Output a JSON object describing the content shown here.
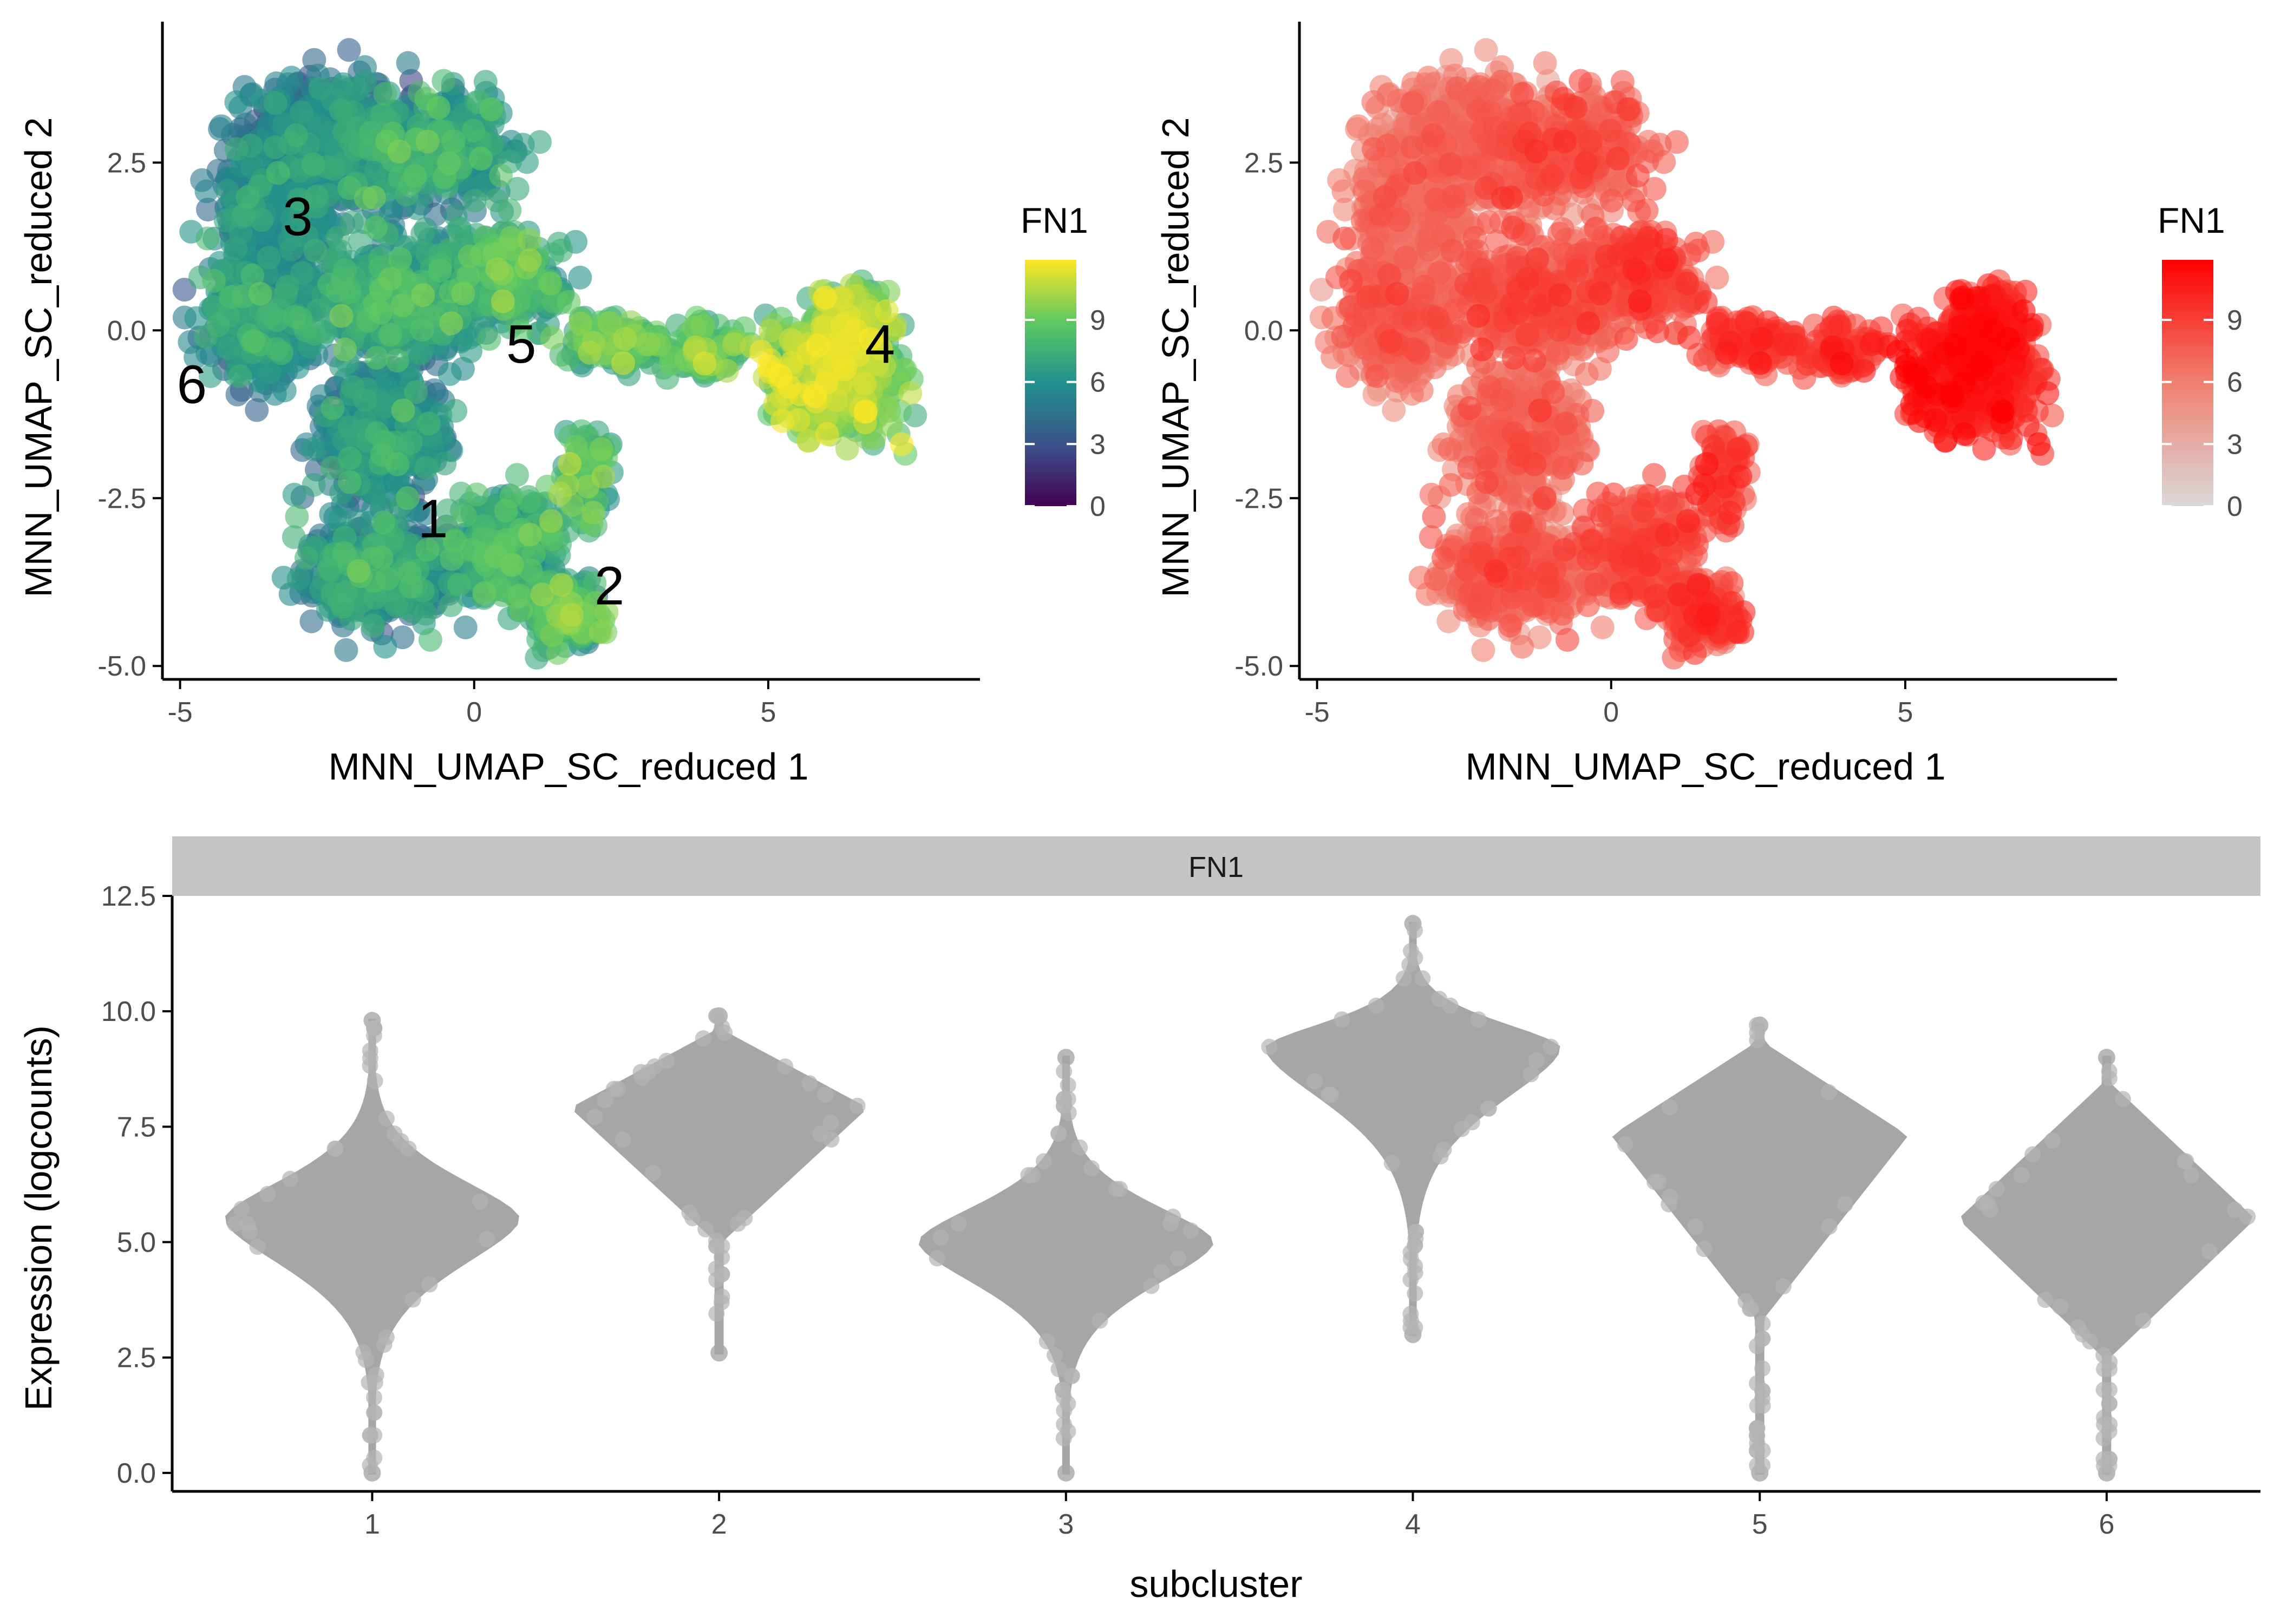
{
  "chart_data": [
    {
      "type": "scatter",
      "xlabel": "MNN_UMAP_SC_reduced 1",
      "ylabel": "MNN_UMAP_SC_reduced 2",
      "xlim": [
        -5.3,
        8.6
      ],
      "ylim": [
        -5.2,
        4.6
      ],
      "xticks": [
        "-5",
        "0",
        "5"
      ],
      "yticks": [
        "-5.0",
        "-2.5",
        "0.0",
        "2.5"
      ],
      "color_by": "FN1",
      "colorscale": "viridis",
      "colors": [
        "#440154",
        "#3b528b",
        "#21918c",
        "#5ec962",
        "#fde725"
      ],
      "legend": {
        "title": "FN1",
        "labels": [
          "0",
          "3",
          "6",
          "9"
        ],
        "range": [
          0,
          11.9
        ],
        "position": "right"
      },
      "clusters": [
        {
          "label": "1",
          "x": -0.7,
          "y": -2.8,
          "mean_fn1": 5.6
        },
        {
          "label": "2",
          "x": 2.3,
          "y": -3.8,
          "mean_fn1": 7.6
        },
        {
          "label": "3",
          "x": -3.0,
          "y": 1.7,
          "mean_fn1": 4.9
        },
        {
          "label": "4",
          "x": 6.9,
          "y": -0.2,
          "mean_fn1": 9.2
        },
        {
          "label": "5",
          "x": 0.8,
          "y": -0.2,
          "mean_fn1": 7.3
        },
        {
          "label": "6",
          "x": -4.8,
          "y": -0.8,
          "mean_fn1": 5.5
        }
      ],
      "grid": false
    },
    {
      "type": "scatter",
      "xlabel": "MNN_UMAP_SC_reduced 1",
      "ylabel": "MNN_UMAP_SC_reduced 2",
      "xlim": [
        -5.3,
        8.6
      ],
      "ylim": [
        -5.2,
        4.6
      ],
      "xticks": [
        "-5",
        "0",
        "5"
      ],
      "yticks": [
        "-5.0",
        "-2.5",
        "0.0",
        "2.5"
      ],
      "color_by": "FN1",
      "colorscale": "grey-to-red",
      "colors": [
        "#d9d9d9",
        "#f08070",
        "#ff0000"
      ],
      "legend": {
        "title": "FN1",
        "labels": [
          "0",
          "3",
          "6",
          "9"
        ],
        "range": [
          0,
          11.9
        ],
        "position": "right"
      },
      "grid": false
    },
    {
      "type": "violin",
      "facet_title": "FN1",
      "xlabel": "subcluster",
      "ylabel": "Expression (logcounts)",
      "categories": [
        "1",
        "2",
        "3",
        "4",
        "5",
        "6"
      ],
      "ylim": [
        -0.4,
        12.5
      ],
      "yticks": [
        "0.0",
        "2.5",
        "5.0",
        "7.5",
        "10.0",
        "12.5"
      ],
      "series": [
        {
          "category": "1",
          "min": 0.0,
          "max": 9.8,
          "mode": 5.5,
          "shape": "kite"
        },
        {
          "category": "2",
          "min": 2.6,
          "max": 9.9,
          "mode": 7.9,
          "shape": "diamond"
        },
        {
          "category": "3",
          "min": 0.0,
          "max": 9.0,
          "mode": 5.0,
          "shape": "kite"
        },
        {
          "category": "4",
          "min": 3.0,
          "max": 11.9,
          "mode": 9.2,
          "shape": "kite"
        },
        {
          "category": "5",
          "min": 0.0,
          "max": 9.7,
          "mode": 7.3,
          "shape": "diamond"
        },
        {
          "category": "6",
          "min": 0.0,
          "max": 9.0,
          "mode": 5.5,
          "shape": "diamond"
        }
      ],
      "fill_color": "#a6a6a6",
      "strip_color": "#c4c4c4",
      "grid": false
    }
  ]
}
